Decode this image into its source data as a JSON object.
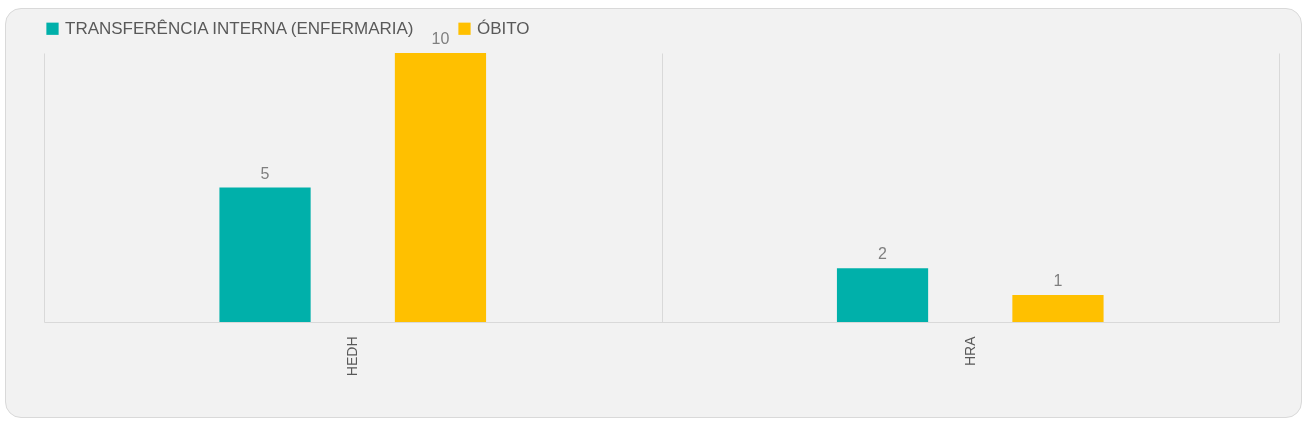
{
  "chart_data": {
    "type": "bar",
    "categories": [
      "HEDH",
      "HRA"
    ],
    "series": [
      {
        "name": "TRANSFERÊNCIA INTERNA (ENFERMARIA)",
        "color": "#00b0aa",
        "values": [
          5,
          2
        ]
      },
      {
        "name": "ÓBITO",
        "color": "#ffc000",
        "values": [
          10,
          1
        ]
      }
    ],
    "data_labels": true,
    "legend": "top",
    "grid": "x"
  }
}
